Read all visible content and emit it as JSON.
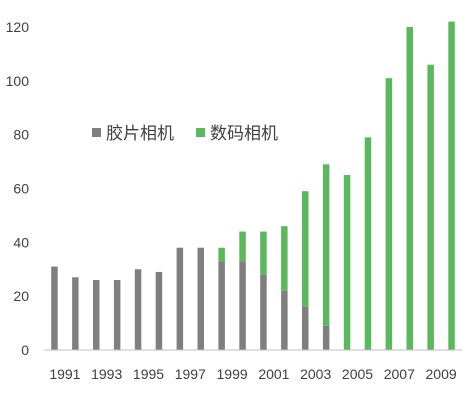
{
  "colors": {
    "film": "#7f7f7f",
    "digital": "#5cb85c",
    "axis": "#bfbfbf",
    "text": "#404040"
  },
  "chart_data": {
    "type": "bar",
    "stacked": true,
    "title": "",
    "xlabel": "",
    "ylabel": "",
    "ylim": [
      0,
      120
    ],
    "yticks": [
      0,
      20,
      40,
      60,
      80,
      100,
      120
    ],
    "grid": false,
    "legend_position": "center-left",
    "categories": [
      "1991",
      "1992",
      "1993",
      "1994",
      "1995",
      "1996",
      "1997",
      "1998",
      "1999",
      "2000",
      "2001",
      "2002",
      "2003",
      "2004",
      "2005",
      "2006",
      "2007",
      "2008",
      "2009",
      "2010"
    ],
    "x_tick_labels": [
      "1991",
      "1993",
      "1995",
      "1997",
      "1999",
      "2001",
      "2003",
      "2005",
      "2007",
      "2009"
    ],
    "series": [
      {
        "name": "胶片相机",
        "values": [
          31,
          27,
          26,
          26,
          30,
          29,
          38,
          38,
          33,
          33,
          28,
          22,
          16,
          9,
          0,
          0,
          0,
          0,
          0,
          0
        ]
      },
      {
        "name": "数码相机",
        "values": [
          0,
          0,
          0,
          0,
          0,
          0,
          0,
          0,
          5,
          11,
          16,
          24,
          43,
          60,
          65,
          79,
          101,
          120,
          106,
          122
        ]
      }
    ]
  }
}
